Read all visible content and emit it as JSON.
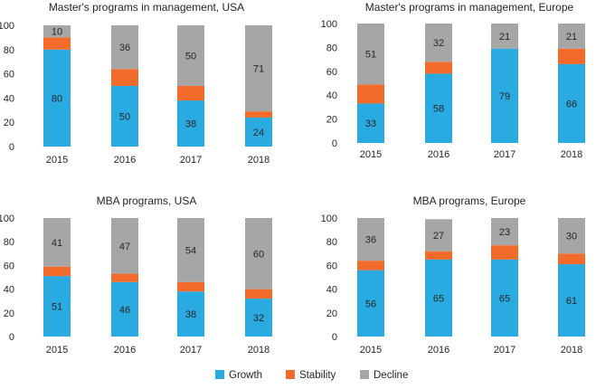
{
  "colors": {
    "Growth": "#29ABE2",
    "Stability": "#F26B2A",
    "Decline": "#A6A6A6"
  },
  "legend": [
    "Growth",
    "Stability",
    "Decline"
  ],
  "chart_data": [
    {
      "type": "bar",
      "stacked": true,
      "title": "Master's programs in management, USA",
      "categories": [
        "2015",
        "2016",
        "2017",
        "2018"
      ],
      "ylim": [
        0,
        100
      ],
      "yticks": [
        0,
        20,
        40,
        60,
        80,
        100
      ],
      "series": [
        {
          "name": "Growth",
          "values": [
            80,
            50,
            38,
            24
          ],
          "labels": [
            "80",
            "50",
            "38",
            "24"
          ]
        },
        {
          "name": "Stability",
          "values": [
            10,
            14,
            12,
            5
          ],
          "labels": [
            "",
            "",
            "",
            ""
          ]
        },
        {
          "name": "Decline",
          "values": [
            10,
            36,
            50,
            71
          ],
          "labels": [
            "10",
            "36",
            "50",
            "71"
          ]
        }
      ]
    },
    {
      "type": "bar",
      "stacked": true,
      "title": "Master's programs in management, Europe",
      "categories": [
        "2015",
        "2016",
        "2017",
        "2018"
      ],
      "ylim": [
        0,
        100
      ],
      "yticks": [
        0,
        20,
        40,
        60,
        80,
        100
      ],
      "series": [
        {
          "name": "Growth",
          "values": [
            33,
            58,
            79,
            66
          ],
          "labels": [
            "33",
            "58",
            "79",
            "66"
          ]
        },
        {
          "name": "Stability",
          "values": [
            16,
            10,
            0,
            13
          ],
          "labels": [
            "",
            "",
            "",
            ""
          ]
        },
        {
          "name": "Decline",
          "values": [
            51,
            32,
            21,
            21
          ],
          "labels": [
            "51",
            "32",
            "21",
            "21"
          ]
        }
      ]
    },
    {
      "type": "bar",
      "stacked": true,
      "title": "MBA programs, USA",
      "categories": [
        "2015",
        "2016",
        "2017",
        "2018"
      ],
      "ylim": [
        0,
        100
      ],
      "yticks": [
        0,
        20,
        40,
        60,
        80,
        100
      ],
      "series": [
        {
          "name": "Growth",
          "values": [
            51,
            46,
            38,
            32
          ],
          "labels": [
            "51",
            "46",
            "38",
            "32"
          ]
        },
        {
          "name": "Stability",
          "values": [
            8,
            7,
            8,
            8
          ],
          "labels": [
            "",
            "",
            "",
            ""
          ]
        },
        {
          "name": "Decline",
          "values": [
            41,
            47,
            54,
            60
          ],
          "labels": [
            "41",
            "47",
            "54",
            "60"
          ]
        }
      ]
    },
    {
      "type": "bar",
      "stacked": true,
      "title": "MBA programs, Europe",
      "categories": [
        "2015",
        "2016",
        "2017",
        "2018"
      ],
      "ylim": [
        0,
        100
      ],
      "yticks": [
        0,
        20,
        40,
        60,
        80,
        100
      ],
      "series": [
        {
          "name": "Growth",
          "values": [
            56,
            65,
            65,
            61
          ],
          "labels": [
            "56",
            "65",
            "65",
            "61"
          ]
        },
        {
          "name": "Stability",
          "values": [
            8,
            7,
            12,
            9
          ],
          "labels": [
            "",
            "",
            "",
            ""
          ]
        },
        {
          "name": "Decline",
          "values": [
            36,
            27,
            23,
            30
          ],
          "labels": [
            "36",
            "27",
            "23",
            "30"
          ]
        }
      ]
    }
  ]
}
